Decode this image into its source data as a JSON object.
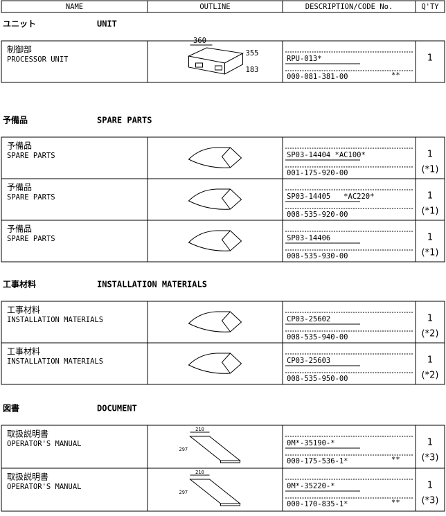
{
  "header": {
    "columns": [
      "NAME",
      "OUTLINE",
      "DESCRIPTION/CODE No.",
      "Q'TY"
    ]
  },
  "sections": [
    {
      "title_jp": "ユニット",
      "title_en": "UNIT",
      "rows": [
        {
          "name_jp": "制御部",
          "name_en": "PROCESSOR UNIT",
          "dims": [
            "360",
            "355",
            "183"
          ],
          "description": "RPU-013*",
          "code": "000-081-381-00",
          "mark": "**",
          "qty": 1
        }
      ]
    },
    {
      "title_jp": "予備品",
      "title_en": "SPARE PARTS",
      "rows": [
        {
          "name_jp": "予備品",
          "name_en": "SPARE PARTS",
          "description": "SP03-14404 *AC100*",
          "code": "001-175-920-00",
          "qty": 1,
          "note": "(*1)"
        },
        {
          "name_jp": "予備品",
          "name_en": "SPARE PARTS",
          "description": "SP03-14405   *AC220*",
          "code": "008-535-920-00",
          "qty": 1,
          "note": "(*1)"
        },
        {
          "name_jp": "予備品",
          "name_en": "SPARE PARTS",
          "description": "SP03-14406",
          "code": "008-535-930-00",
          "qty": 1,
          "note": "(*1)"
        }
      ]
    },
    {
      "title_jp": "工事材料",
      "title_en": "INSTALLATION MATERIALS",
      "rows": [
        {
          "name_jp": "工事材料",
          "name_en": "INSTALLATION MATERIALS",
          "description": "CP03-25602",
          "code": "008-535-940-00",
          "qty": 1,
          "note": "(*2)"
        },
        {
          "name_jp": "工事材料",
          "name_en": "INSTALLATION MATERIALS",
          "description": "CP03-25603",
          "code": "008-535-950-00",
          "qty": 1,
          "note": "(*2)"
        }
      ]
    },
    {
      "title_jp": "図書",
      "title_en": "DOCUMENT",
      "rows": [
        {
          "name_jp": "取扱説明書",
          "name_en": "OPERATOR'S MANUAL",
          "dims": [
            "210",
            "297"
          ],
          "description": "0M*-35190-*",
          "code": "000-175-536-1*",
          "mark": "**",
          "qty": 1,
          "note": "(*3)"
        },
        {
          "name_jp": "取扱説明書",
          "name_en": "OPERATOR'S MANUAL",
          "dims": [
            "210",
            "297"
          ],
          "description": "0M*-35220-*",
          "code": "000-170-835-1*",
          "mark": "**",
          "qty": 1,
          "note": "(*3)"
        }
      ]
    }
  ]
}
